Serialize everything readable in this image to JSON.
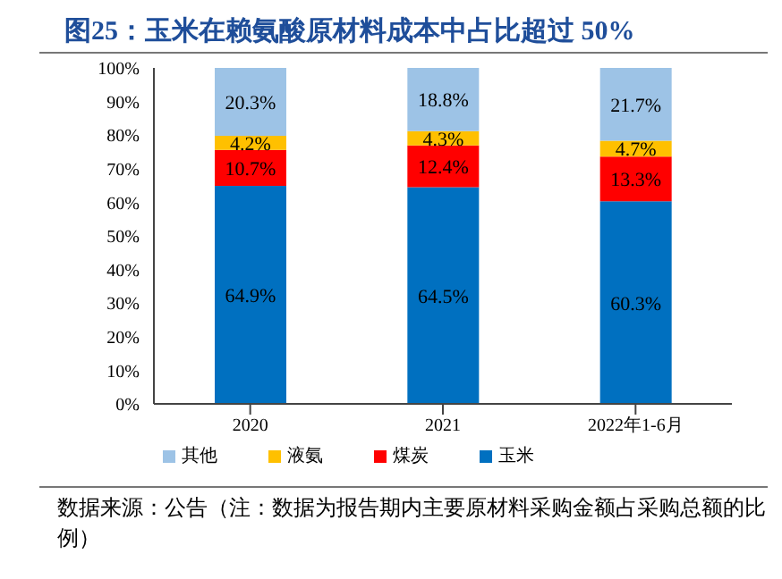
{
  "chart_data": {
    "type": "bar",
    "title": "图25：玉米在赖氨酸原材料成本中占比超过 50%",
    "categories": [
      "2020",
      "2021",
      "2022年1-6月"
    ],
    "stacked": true,
    "series": [
      {
        "name": "玉米",
        "color": "#0070c0",
        "values": [
          64.9,
          64.5,
          60.3
        ],
        "value_labels": [
          "64.9%",
          "64.5%",
          "60.3%"
        ]
      },
      {
        "name": "煤炭",
        "color": "#ff0000",
        "values": [
          10.7,
          12.4,
          13.3
        ],
        "value_labels": [
          "10.7%",
          "12.4%",
          "13.3%"
        ]
      },
      {
        "name": "液氨",
        "color": "#ffc000",
        "values": [
          4.2,
          4.3,
          4.7
        ],
        "value_labels": [
          "4.2%",
          "4.3%",
          "4.7%"
        ]
      },
      {
        "name": "其他",
        "color": "#9dc3e6",
        "values": [
          20.3,
          18.8,
          21.7
        ],
        "value_labels": [
          "20.3%",
          "18.8%",
          "21.7%"
        ]
      }
    ],
    "ylim": [
      0,
      100
    ],
    "yticks": [
      {
        "value": 0,
        "label": "0%"
      },
      {
        "value": 10,
        "label": "10%"
      },
      {
        "value": 20,
        "label": "20%"
      },
      {
        "value": 30,
        "label": "30%"
      },
      {
        "value": 40,
        "label": "40%"
      },
      {
        "value": 50,
        "label": "50%"
      },
      {
        "value": 60,
        "label": "60%"
      },
      {
        "value": 70,
        "label": "70%"
      },
      {
        "value": 80,
        "label": "80%"
      },
      {
        "value": 90,
        "label": "90%"
      },
      {
        "value": 100,
        "label": "100%"
      }
    ],
    "grid": false,
    "legend": "bottom",
    "annotations": [
      "数据来源：公告（注：数据为报告期内主要原材料采购金额占采购总额的比例）"
    ]
  }
}
